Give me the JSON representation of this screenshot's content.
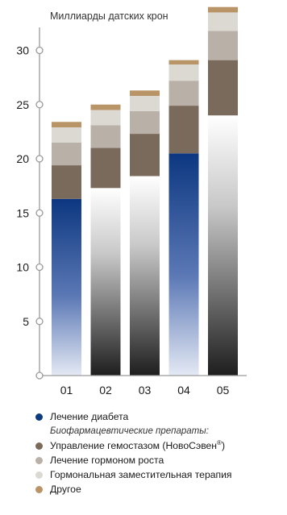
{
  "chart_data": {
    "type": "bar",
    "stacked": true,
    "subtitle": "Миллиарды датских крон",
    "categories": [
      "01",
      "02",
      "03",
      "04",
      "05"
    ],
    "yticks": [
      5,
      10,
      15,
      20,
      25,
      30
    ],
    "ylim": [
      0,
      34
    ],
    "series": [
      {
        "name": "Лечение диабета",
        "color": "#0e3a80",
        "values": [
          16.3,
          17.3,
          18.4,
          20.5,
          24.0
        ]
      },
      {
        "name": "Управление гемостазом (НовоСэвен®)",
        "color": "#7a6a5c",
        "values": [
          3.1,
          3.7,
          3.9,
          4.4,
          5.1
        ]
      },
      {
        "name": "Лечение гормоном роста",
        "color": "#b9b0a7",
        "values": [
          2.1,
          2.1,
          2.1,
          2.3,
          2.7
        ]
      },
      {
        "name": "Гормональная заместительная терапия",
        "color": "#dcd8d2",
        "values": [
          1.4,
          1.4,
          1.4,
          1.5,
          1.7
        ]
      },
      {
        "name": "Другое",
        "color": "#b89467",
        "values": [
          0.5,
          0.5,
          0.5,
          0.4,
          0.5
        ]
      }
    ],
    "grid": false
  },
  "legend": {
    "items": [
      {
        "label": "Лечение диабета",
        "color": "#0e3a80"
      },
      {
        "note": "Биофармацевтические препараты:"
      },
      {
        "label": "Управление гемостазом (НовоСэвен",
        "sup": "®",
        "tail": ")",
        "color": "#7a6a5c"
      },
      {
        "label": "Лечение гормоном роста",
        "color": "#b9b0a7"
      },
      {
        "label": "Гормональная заместительная терапия",
        "color": "#dcd8d2"
      },
      {
        "label": "Другое",
        "color": "#b89467"
      }
    ]
  }
}
